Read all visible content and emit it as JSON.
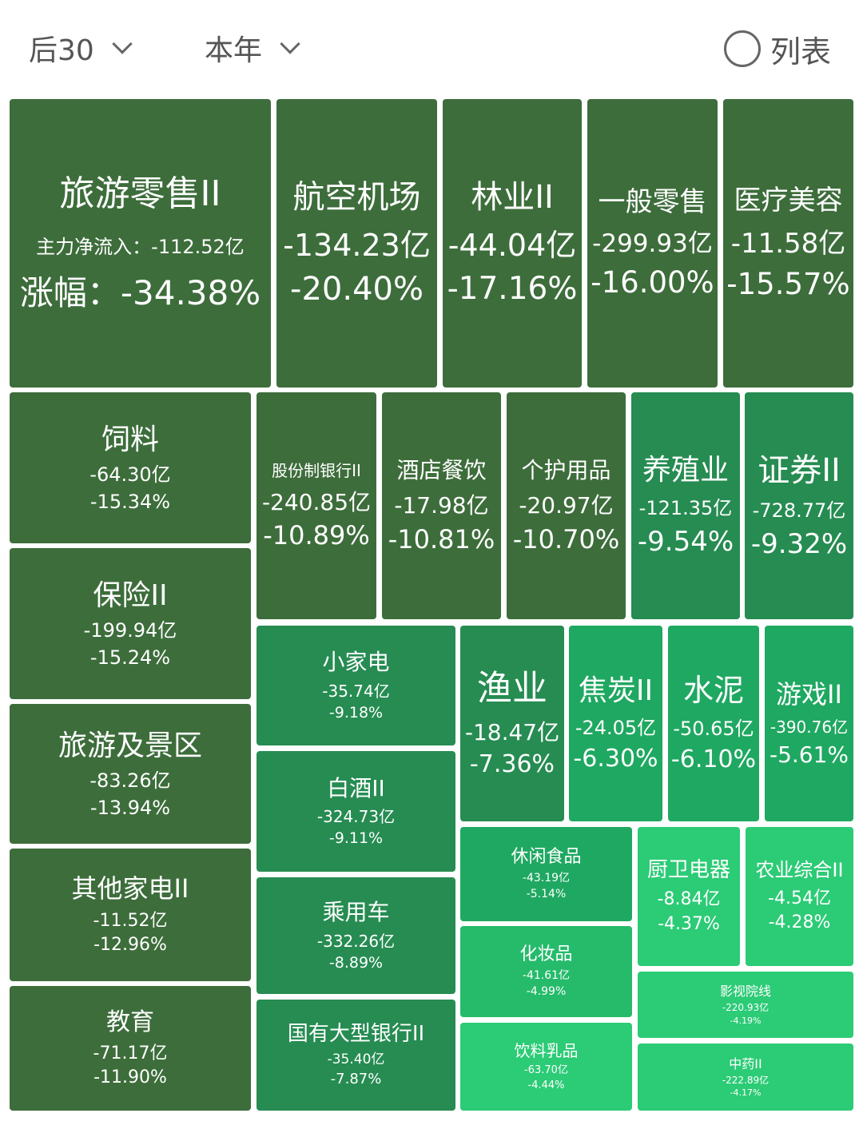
{
  "header": {
    "range_label": "后30",
    "period_label": "本年",
    "view_toggle_label": "列表"
  },
  "colors": {
    "dark": "#3d6d3b",
    "mid": "#268c52",
    "bright": "#1fa861",
    "brighter": "#25bb6b",
    "light": "#2ccb76"
  },
  "featured": {
    "name": "旅游零售II",
    "flow_label": "主力净流入：",
    "flow": "-112.52亿",
    "change_label": "涨幅：",
    "change": "-34.38%"
  },
  "sectors": [
    {
      "name": "航空机场",
      "flow": "-134.23亿",
      "change": "-20.40%",
      "shade": "dark"
    },
    {
      "name": "林业II",
      "flow": "-44.04亿",
      "change": "-17.16%",
      "shade": "dark"
    },
    {
      "name": "一般零售",
      "flow": "-299.93亿",
      "change": "-16.00%",
      "shade": "dark"
    },
    {
      "name": "医疗美容",
      "flow": "-11.58亿",
      "change": "-15.57%",
      "shade": "dark"
    },
    {
      "name": "饲料",
      "flow": "-64.30亿",
      "change": "-15.34%",
      "shade": "dark"
    },
    {
      "name": "保险II",
      "flow": "-199.94亿",
      "change": "-15.24%",
      "shade": "dark"
    },
    {
      "name": "旅游及景区",
      "flow": "-83.26亿",
      "change": "-13.94%",
      "shade": "dark"
    },
    {
      "name": "其他家电II",
      "flow": "-11.52亿",
      "change": "-12.96%",
      "shade": "dark"
    },
    {
      "name": "教育",
      "flow": "-71.17亿",
      "change": "-11.90%",
      "shade": "dark"
    },
    {
      "name": "股份制银行II",
      "flow": "-240.85亿",
      "change": "-10.89%",
      "shade": "dark"
    },
    {
      "name": "酒店餐饮",
      "flow": "-17.98亿",
      "change": "-10.81%",
      "shade": "dark"
    },
    {
      "name": "个护用品",
      "flow": "-20.97亿",
      "change": "-10.70%",
      "shade": "dark"
    },
    {
      "name": "养殖业",
      "flow": "-121.35亿",
      "change": "-9.54%",
      "shade": "mid"
    },
    {
      "name": "证券II",
      "flow": "-728.77亿",
      "change": "-9.32%",
      "shade": "mid"
    },
    {
      "name": "小家电",
      "flow": "-35.74亿",
      "change": "-9.18%",
      "shade": "mid"
    },
    {
      "name": "白酒II",
      "flow": "-324.73亿",
      "change": "-9.11%",
      "shade": "mid"
    },
    {
      "name": "乘用车",
      "flow": "-332.26亿",
      "change": "-8.89%",
      "shade": "mid"
    },
    {
      "name": "国有大型银行II",
      "flow": "-35.40亿",
      "change": "-7.87%",
      "shade": "mid"
    },
    {
      "name": "渔业",
      "flow": "-18.47亿",
      "change": "-7.36%",
      "shade": "mid"
    },
    {
      "name": "焦炭II",
      "flow": "-24.05亿",
      "change": "-6.30%",
      "shade": "bright"
    },
    {
      "name": "水泥",
      "flow": "-50.65亿",
      "change": "-6.10%",
      "shade": "bright"
    },
    {
      "name": "游戏II",
      "flow": "-390.76亿",
      "change": "-5.61%",
      "shade": "bright"
    },
    {
      "name": "休闲食品",
      "flow": "-43.19亿",
      "change": "-5.14%",
      "shade": "bright"
    },
    {
      "name": "化妆品",
      "flow": "-41.61亿",
      "change": "-4.99%",
      "shade": "brighter"
    },
    {
      "name": "饮料乳品",
      "flow": "-63.70亿",
      "change": "-4.44%",
      "shade": "light"
    },
    {
      "name": "厨卫电器",
      "flow": "-8.84亿",
      "change": "-4.37%",
      "shade": "light"
    },
    {
      "name": "农业综合II",
      "flow": "-4.54亿",
      "change": "-4.28%",
      "shade": "light"
    },
    {
      "name": "影视院线",
      "flow": "-220.93亿",
      "change": "-4.19%",
      "shade": "light"
    },
    {
      "name": "中药II",
      "flow": "-222.89亿",
      "change": "-4.17%",
      "shade": "light"
    }
  ]
}
